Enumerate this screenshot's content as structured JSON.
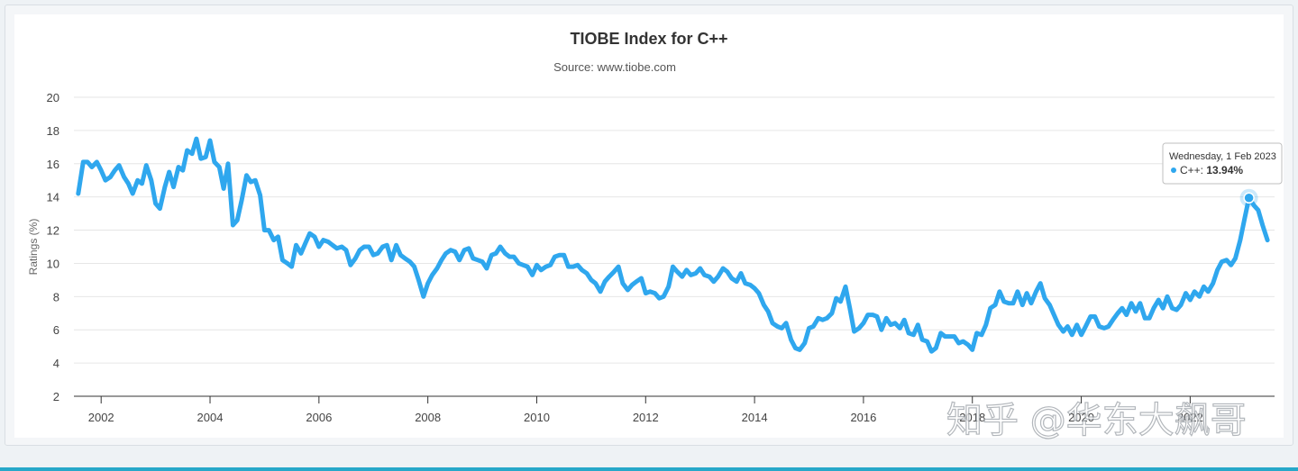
{
  "chart_data": {
    "type": "line",
    "title": "TIOBE Index for C++",
    "subtitle": "Source: www.tiobe.com",
    "ylabel": "Ratings (%)",
    "xlabel": "",
    "ylim": [
      2,
      20
    ],
    "yticks": [
      2,
      4,
      6,
      8,
      10,
      12,
      14,
      16,
      18,
      20
    ],
    "xlim": [
      2001.5,
      2023.55
    ],
    "xticks": [
      2002,
      2004,
      2006,
      2008,
      2010,
      2012,
      2014,
      2016,
      2018,
      2020,
      2022
    ],
    "xtick_labels": [
      "2002",
      "2004",
      "2006",
      "2008",
      "2010",
      "2012",
      "2014",
      "2016",
      "2018",
      "2020",
      "2022"
    ],
    "grid": true,
    "legend": false,
    "line_color": "#2fa7ee",
    "series": [
      {
        "name": "C++",
        "x": [
          2001.58,
          2001.67,
          2001.75,
          2001.83,
          2001.92,
          2002.0,
          2002.08,
          2002.17,
          2002.25,
          2002.33,
          2002.42,
          2002.5,
          2002.58,
          2002.67,
          2002.75,
          2002.83,
          2002.92,
          2003.0,
          2003.08,
          2003.17,
          2003.25,
          2003.33,
          2003.42,
          2003.5,
          2003.58,
          2003.67,
          2003.75,
          2003.83,
          2003.92,
          2004.0,
          2004.08,
          2004.17,
          2004.25,
          2004.33,
          2004.42,
          2004.5,
          2004.58,
          2004.67,
          2004.75,
          2004.83,
          2004.92,
          2005.0,
          2005.08,
          2005.17,
          2005.25,
          2005.33,
          2005.42,
          2005.5,
          2005.58,
          2005.67,
          2005.75,
          2005.83,
          2005.92,
          2006.0,
          2006.08,
          2006.17,
          2006.25,
          2006.33,
          2006.42,
          2006.5,
          2006.58,
          2006.67,
          2006.75,
          2006.83,
          2006.92,
          2007.0,
          2007.08,
          2007.17,
          2007.25,
          2007.33,
          2007.42,
          2007.5,
          2007.58,
          2007.67,
          2007.75,
          2007.83,
          2007.92,
          2008.0,
          2008.08,
          2008.17,
          2008.25,
          2008.33,
          2008.42,
          2008.5,
          2008.58,
          2008.67,
          2008.75,
          2008.83,
          2008.92,
          2009.0,
          2009.08,
          2009.17,
          2009.25,
          2009.33,
          2009.42,
          2009.5,
          2009.58,
          2009.67,
          2009.75,
          2009.83,
          2009.92,
          2010.0,
          2010.08,
          2010.17,
          2010.25,
          2010.33,
          2010.42,
          2010.5,
          2010.58,
          2010.67,
          2010.75,
          2010.83,
          2010.92,
          2011.0,
          2011.08,
          2011.17,
          2011.25,
          2011.33,
          2011.42,
          2011.5,
          2011.58,
          2011.67,
          2011.75,
          2011.83,
          2011.92,
          2012.0,
          2012.08,
          2012.17,
          2012.25,
          2012.33,
          2012.42,
          2012.5,
          2012.58,
          2012.67,
          2012.75,
          2012.83,
          2012.92,
          2013.0,
          2013.08,
          2013.17,
          2013.25,
          2013.33,
          2013.42,
          2013.5,
          2013.58,
          2013.67,
          2013.75,
          2013.83,
          2013.92,
          2014.0,
          2014.08,
          2014.17,
          2014.25,
          2014.33,
          2014.42,
          2014.5,
          2014.58,
          2014.67,
          2014.75,
          2014.83,
          2014.92,
          2015.0,
          2015.08,
          2015.17,
          2015.25,
          2015.33,
          2015.42,
          2015.5,
          2015.58,
          2015.67,
          2015.75,
          2015.83,
          2015.92,
          2016.0,
          2016.08,
          2016.17,
          2016.25,
          2016.33,
          2016.42,
          2016.5,
          2016.58,
          2016.67,
          2016.75,
          2016.83,
          2016.92,
          2017.0,
          2017.08,
          2017.17,
          2017.25,
          2017.33,
          2017.42,
          2017.5,
          2017.58,
          2017.67,
          2017.75,
          2017.83,
          2017.92,
          2018.0,
          2018.08,
          2018.17,
          2018.25,
          2018.33,
          2018.42,
          2018.5,
          2018.58,
          2018.67,
          2018.75,
          2018.83,
          2018.92,
          2019.0,
          2019.08,
          2019.17,
          2019.25,
          2019.33,
          2019.42,
          2019.5,
          2019.58,
          2019.67,
          2019.75,
          2019.83,
          2019.92,
          2020.0,
          2020.08,
          2020.17,
          2020.25,
          2020.33,
          2020.42,
          2020.5,
          2020.58,
          2020.67,
          2020.75,
          2020.83,
          2020.92,
          2021.0,
          2021.08,
          2021.17,
          2021.25,
          2021.33,
          2021.42,
          2021.5,
          2021.58,
          2021.67,
          2021.75,
          2021.83,
          2021.92,
          2022.0,
          2022.08,
          2022.17,
          2022.25,
          2022.33,
          2022.42,
          2022.5,
          2022.58,
          2022.67,
          2022.75,
          2022.83,
          2022.92,
          2023.0,
          2023.08,
          2023.17,
          2023.25,
          2023.33,
          2023.42
        ],
        "values": [
          14.2,
          16.1,
          16.1,
          15.8,
          16.1,
          15.6,
          15.0,
          15.2,
          15.6,
          15.9,
          15.2,
          14.8,
          14.2,
          15.0,
          14.8,
          15.9,
          15.0,
          13.6,
          13.3,
          14.6,
          15.5,
          14.6,
          15.8,
          15.6,
          16.8,
          16.6,
          17.5,
          16.3,
          16.4,
          17.4,
          16.1,
          15.8,
          14.5,
          16.0,
          12.3,
          12.6,
          13.8,
          15.3,
          14.9,
          15.0,
          14.1,
          12.0,
          12.0,
          11.4,
          11.6,
          10.2,
          10.0,
          9.8,
          11.1,
          10.6,
          11.2,
          11.8,
          11.6,
          11.0,
          11.4,
          11.3,
          11.1,
          10.9,
          11.0,
          10.8,
          9.9,
          10.3,
          10.8,
          11.0,
          11.0,
          10.5,
          10.6,
          11.0,
          11.1,
          10.2,
          11.1,
          10.5,
          10.3,
          10.1,
          9.8,
          9.0,
          8.0,
          8.8,
          9.3,
          9.7,
          10.2,
          10.6,
          10.8,
          10.7,
          10.2,
          10.8,
          10.9,
          10.3,
          10.2,
          10.1,
          9.7,
          10.5,
          10.6,
          11.0,
          10.6,
          10.4,
          10.4,
          10.0,
          9.9,
          9.8,
          9.3,
          9.9,
          9.6,
          9.8,
          9.9,
          10.4,
          10.5,
          10.5,
          9.8,
          9.8,
          9.9,
          9.6,
          9.4,
          9.0,
          8.8,
          8.3,
          8.9,
          9.2,
          9.5,
          9.8,
          8.8,
          8.4,
          8.7,
          8.9,
          9.1,
          8.2,
          8.3,
          8.2,
          7.9,
          8.0,
          8.6,
          9.8,
          9.5,
          9.2,
          9.6,
          9.3,
          9.4,
          9.7,
          9.3,
          9.2,
          8.9,
          9.2,
          9.7,
          9.5,
          9.1,
          8.9,
          9.4,
          8.8,
          8.7,
          8.5,
          8.2,
          7.5,
          7.1,
          6.4,
          6.2,
          6.1,
          6.4,
          5.4,
          4.9,
          4.8,
          5.2,
          6.1,
          6.2,
          6.7,
          6.6,
          6.7,
          7.0,
          7.9,
          7.7,
          8.6,
          7.3,
          5.9,
          6.1,
          6.4,
          6.9,
          6.9,
          6.8,
          6.0,
          6.7,
          6.3,
          6.4,
          6.1,
          6.6,
          5.8,
          5.7,
          6.3,
          5.4,
          5.3,
          4.7,
          4.9,
          5.8,
          5.6,
          5.6,
          5.6,
          5.2,
          5.3,
          5.1,
          4.8,
          5.8,
          5.7,
          6.3,
          7.3,
          7.5,
          8.3,
          7.7,
          7.6,
          7.6,
          8.3,
          7.5,
          8.2,
          7.6,
          8.3,
          8.8,
          7.9,
          7.5,
          6.9,
          6.3,
          5.9,
          6.2,
          5.7,
          6.3,
          5.7,
          6.2,
          6.8,
          6.8,
          6.2,
          6.1,
          6.2,
          6.6,
          7.0,
          7.3,
          6.9,
          7.6,
          7.1,
          7.6,
          6.7,
          6.7,
          7.3,
          7.8,
          7.3,
          8.0,
          7.3,
          7.2,
          7.5,
          8.2,
          7.8,
          8.3,
          8.0,
          8.6,
          8.3,
          8.8,
          9.6,
          10.1,
          10.2,
          9.9,
          10.3,
          11.4,
          12.7,
          13.94,
          13.5,
          13.2,
          12.3,
          11.4
        ]
      }
    ],
    "tooltip": {
      "date": "Wednesday, 1 Feb 2023",
      "series_name": "C++: ",
      "value_text": "13.94%",
      "point_x": 2023.08,
      "point_y": 13.94
    }
  },
  "watermark": {
    "text": "知乎 @华东大飙哥"
  },
  "colors": {
    "line": "#2fa7ee",
    "grid": "#e6e6e6",
    "axis": "#333333",
    "panel": "#ffffff",
    "frame": "#f4f6f8",
    "strip": "#26a8c9"
  }
}
